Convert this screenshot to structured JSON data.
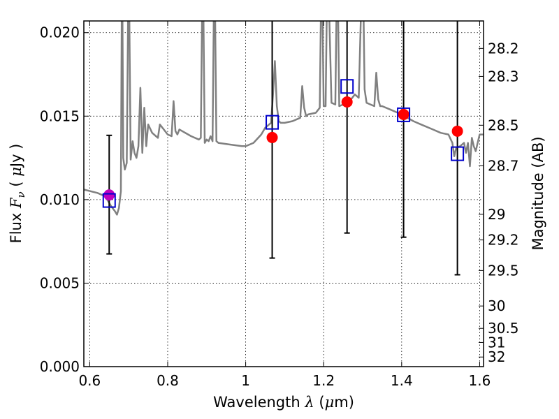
{
  "chart_data": {
    "type": "scatter",
    "xlabel": {
      "text": "Wavelength",
      "symbol": "λ",
      "unit_open": "(",
      "unit_mu": "μ",
      "unit_rest": "m)"
    },
    "ylabel": {
      "text": "Flux",
      "symbol": "F",
      "subscript": "ν",
      "unit_open": "(",
      "unit_mu": "μ",
      "unit_rest": "Jy )"
    },
    "y2label": "Magnitude (AB)",
    "xlim": [
      0.585,
      1.61
    ],
    "ylim": [
      0.0,
      0.0207
    ],
    "grid": true,
    "xticks": [
      {
        "value": 0.6,
        "label": "0.6"
      },
      {
        "value": 0.8,
        "label": "0.8"
      },
      {
        "value": 1.0,
        "label": "1"
      },
      {
        "value": 1.2,
        "label": "1.2"
      },
      {
        "value": 1.4,
        "label": "1.4"
      },
      {
        "value": 1.6,
        "label": "1.6"
      }
    ],
    "yticks": [
      {
        "value": 0.0,
        "label": "0.000"
      },
      {
        "value": 0.005,
        "label": "0.005"
      },
      {
        "value": 0.01,
        "label": "0.010"
      },
      {
        "value": 0.015,
        "label": "0.015"
      },
      {
        "value": 0.02,
        "label": "0.020"
      }
    ],
    "y2ticks": [
      {
        "value": 28.2,
        "label": "28.2"
      },
      {
        "value": 28.3,
        "label": "28.3"
      },
      {
        "value": 28.5,
        "label": "28.5"
      },
      {
        "value": 28.7,
        "label": "28.7"
      },
      {
        "value": 29.0,
        "label": "29"
      },
      {
        "value": 29.2,
        "label": "29.2"
      },
      {
        "value": 29.5,
        "label": "29.5"
      },
      {
        "value": 30.0,
        "label": "30"
      },
      {
        "value": 30.5,
        "label": "30.5"
      },
      {
        "value": 31.0,
        "label": "31"
      },
      {
        "value": 32.0,
        "label": "32"
      }
    ],
    "template_spectrum": {
      "color": "#808080",
      "x": [
        0.585,
        0.62,
        0.64,
        0.655,
        0.665,
        0.67,
        0.675,
        0.68,
        0.683,
        0.686,
        0.69,
        0.695,
        0.7,
        0.705,
        0.71,
        0.715,
        0.72,
        0.725,
        0.73,
        0.735,
        0.74,
        0.745,
        0.75,
        0.76,
        0.77,
        0.775,
        0.78,
        0.79,
        0.8,
        0.81,
        0.815,
        0.82,
        0.825,
        0.83,
        0.86,
        0.88,
        0.885,
        0.89,
        0.895,
        0.9,
        0.905,
        0.91,
        0.915,
        0.92,
        0.925,
        0.93,
        0.96,
        0.99,
        1.0,
        1.01,
        1.02,
        1.04,
        1.05,
        1.06,
        1.065,
        1.07,
        1.075,
        1.08,
        1.085,
        1.09,
        1.1,
        1.12,
        1.14,
        1.145,
        1.15,
        1.155,
        1.16,
        1.18,
        1.19,
        1.195,
        1.2,
        1.205,
        1.21,
        1.22,
        1.23,
        1.235,
        1.24,
        1.25,
        1.26,
        1.27,
        1.28,
        1.29,
        1.3,
        1.305,
        1.31,
        1.32,
        1.33,
        1.335,
        1.34,
        1.345,
        1.35,
        1.37,
        1.4,
        1.43,
        1.45,
        1.48,
        1.5,
        1.52,
        1.53,
        1.535,
        1.54,
        1.55,
        1.56,
        1.565,
        1.57,
        1.575,
        1.58,
        1.585,
        1.59,
        1.6,
        1.61
      ],
      "y": [
        0.0106,
        0.0104,
        0.0102,
        0.0096,
        0.0093,
        0.0091,
        0.0095,
        0.0105,
        0.025,
        0.0125,
        0.0118,
        0.0122,
        0.025,
        0.0124,
        0.0135,
        0.0128,
        0.0125,
        0.0132,
        0.0167,
        0.0128,
        0.0155,
        0.0132,
        0.0145,
        0.014,
        0.0138,
        0.0137,
        0.0145,
        0.0142,
        0.0139,
        0.0138,
        0.0159,
        0.0141,
        0.0139,
        0.0142,
        0.0138,
        0.0136,
        0.0137,
        0.025,
        0.0134,
        0.0136,
        0.0135,
        0.0138,
        0.0135,
        0.025,
        0.0135,
        0.0134,
        0.0133,
        0.0132,
        0.0132,
        0.0133,
        0.0134,
        0.0139,
        0.0143,
        0.0145,
        0.0146,
        0.0163,
        0.0183,
        0.0156,
        0.0147,
        0.0146,
        0.0146,
        0.0147,
        0.0149,
        0.0168,
        0.0155,
        0.015,
        0.0151,
        0.0152,
        0.0155,
        0.025,
        0.0156,
        0.0156,
        0.025,
        0.0158,
        0.0157,
        0.025,
        0.0156,
        0.0157,
        0.0158,
        0.016,
        0.0163,
        0.0161,
        0.025,
        0.0166,
        0.0158,
        0.0157,
        0.0156,
        0.0176,
        0.016,
        0.0156,
        0.0156,
        0.0154,
        0.0151,
        0.0147,
        0.0145,
        0.0142,
        0.014,
        0.0139,
        0.0134,
        0.0126,
        0.0131,
        0.0132,
        0.0134,
        0.0128,
        0.0134,
        0.012,
        0.0137,
        0.0132,
        0.0129,
        0.0139,
        0.0139
      ]
    },
    "series": [
      {
        "marker": "circle",
        "color": "#ff0000",
        "points": [
          {
            "x": 0.65,
            "y": 0.01028,
            "color": "#bf00bf"
          },
          {
            "x": 1.068,
            "y": 0.01372
          },
          {
            "x": 1.26,
            "y": 0.01585
          },
          {
            "x": 1.405,
            "y": 0.0151
          },
          {
            "x": 1.543,
            "y": 0.0141
          }
        ]
      },
      {
        "marker": "open-square",
        "color": "#0000cc",
        "points": [
          {
            "x": 0.65,
            "y": 0.00995,
            "yerr_low": 0.00675,
            "yerr_high": 0.01385
          },
          {
            "x": 1.068,
            "y": 0.01463,
            "yerr_low": 0.0065,
            "yerr_high": 0.025
          },
          {
            "x": 1.26,
            "y": 0.01678,
            "yerr_low": 0.008,
            "yerr_high": 0.025
          },
          {
            "x": 1.405,
            "y": 0.01508,
            "yerr_low": 0.00775,
            "yerr_high": 0.025
          },
          {
            "x": 1.543,
            "y": 0.01275,
            "yerr_low": 0.0055,
            "yerr_high": 0.025
          }
        ]
      }
    ]
  }
}
